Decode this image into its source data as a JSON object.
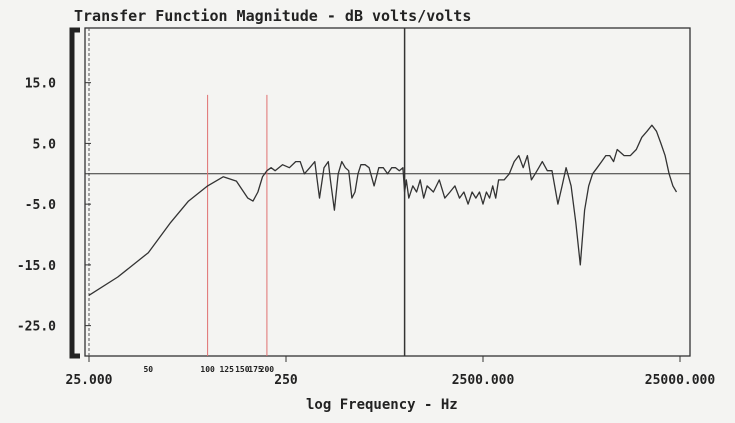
{
  "chart_data": {
    "type": "line",
    "title": "Transfer Function Magnitude - dB volts/volts",
    "xlabel": "log Frequency - Hz",
    "ylabel": "",
    "x_scale": "log",
    "xlim": [
      25,
      25000
    ],
    "ylim": [
      -30,
      24
    ],
    "grid": false,
    "y_ticks": [
      {
        "value": 15,
        "label": "15.0"
      },
      {
        "value": 5,
        "label": "5.0"
      },
      {
        "value": -5,
        "label": "-5.0"
      },
      {
        "value": -15,
        "label": "-15.0"
      },
      {
        "value": -25,
        "label": "-25.0"
      }
    ],
    "x_ticks": [
      {
        "value": 25,
        "label": "25.000"
      },
      {
        "value": 250,
        "label": "250"
      },
      {
        "value": 2500,
        "label": "2500.000"
      },
      {
        "value": 25000,
        "label": "25000.000"
      }
    ],
    "x_annotations": [
      {
        "value": 50,
        "label": "50"
      },
      {
        "value": 100,
        "label": "100"
      },
      {
        "value": 125,
        "label": "125"
      },
      {
        "value": 150,
        "label": "150"
      },
      {
        "value": 175,
        "label": "175"
      },
      {
        "value": 200,
        "label": "200"
      }
    ],
    "reference_lines": {
      "horizontal_y": 0,
      "vertical_x": [
        100,
        200,
        1000
      ],
      "vertical_colors": [
        "#e07070",
        "#e07070",
        "#333333"
      ]
    },
    "series": [
      {
        "color": "#333333",
        "x": [
          25,
          35,
          50,
          65,
          80,
          100,
          120,
          140,
          160,
          170,
          180,
          190,
          200,
          210,
          220,
          240,
          260,
          280,
          295,
          310,
          330,
          350,
          370,
          390,
          410,
          420,
          440,
          460,
          480,
          500,
          520,
          540,
          560,
          580,
          600,
          630,
          660,
          700,
          740,
          780,
          820,
          860,
          900,
          940,
          980,
          1000,
          1020,
          1050,
          1100,
          1150,
          1200,
          1250,
          1300,
          1400,
          1500,
          1600,
          1700,
          1800,
          1900,
          2000,
          2100,
          2200,
          2300,
          2400,
          2500,
          2600,
          2700,
          2800,
          2900,
          3000,
          3200,
          3400,
          3600,
          3800,
          4000,
          4200,
          4400,
          4600,
          4800,
          5000,
          5300,
          5600,
          6000,
          6300,
          6600,
          7000,
          7400,
          7800,
          8200,
          8600,
          9000,
          9500,
          10000,
          10500,
          11000,
          11500,
          12000,
          13000,
          14000,
          15000,
          16000,
          17000,
          18000,
          19000,
          20000,
          21000,
          22000,
          23000,
          24000
        ],
        "y": [
          -20,
          -17,
          -13,
          -8,
          -4.5,
          -2,
          -0.5,
          -1.2,
          -4,
          -4.5,
          -3,
          -0.5,
          0.5,
          1,
          0.5,
          1.5,
          1,
          2,
          2,
          0,
          1,
          2,
          -4,
          1,
          2,
          -1,
          -6,
          0,
          2,
          1,
          0.5,
          -4,
          -3,
          0,
          1.5,
          1.5,
          1,
          -2,
          1,
          1,
          0,
          1,
          1,
          0.5,
          1,
          -3,
          -1,
          -4,
          -2,
          -3,
          -1,
          -4,
          -2,
          -3,
          -1,
          -4,
          -3,
          -2,
          -4,
          -3,
          -5,
          -3,
          -4,
          -3,
          -5,
          -3,
          -4,
          -2,
          -4,
          -1,
          -1,
          0,
          2,
          3,
          1,
          3,
          -1,
          0,
          1,
          2,
          0.5,
          0.5,
          -5,
          -2,
          1,
          -2,
          -8,
          -15,
          -6,
          -2,
          0,
          1,
          2,
          3,
          3,
          2,
          4,
          3,
          3,
          4,
          6,
          7,
          8,
          7,
          5,
          3,
          0,
          -2,
          -3
        ]
      }
    ]
  }
}
